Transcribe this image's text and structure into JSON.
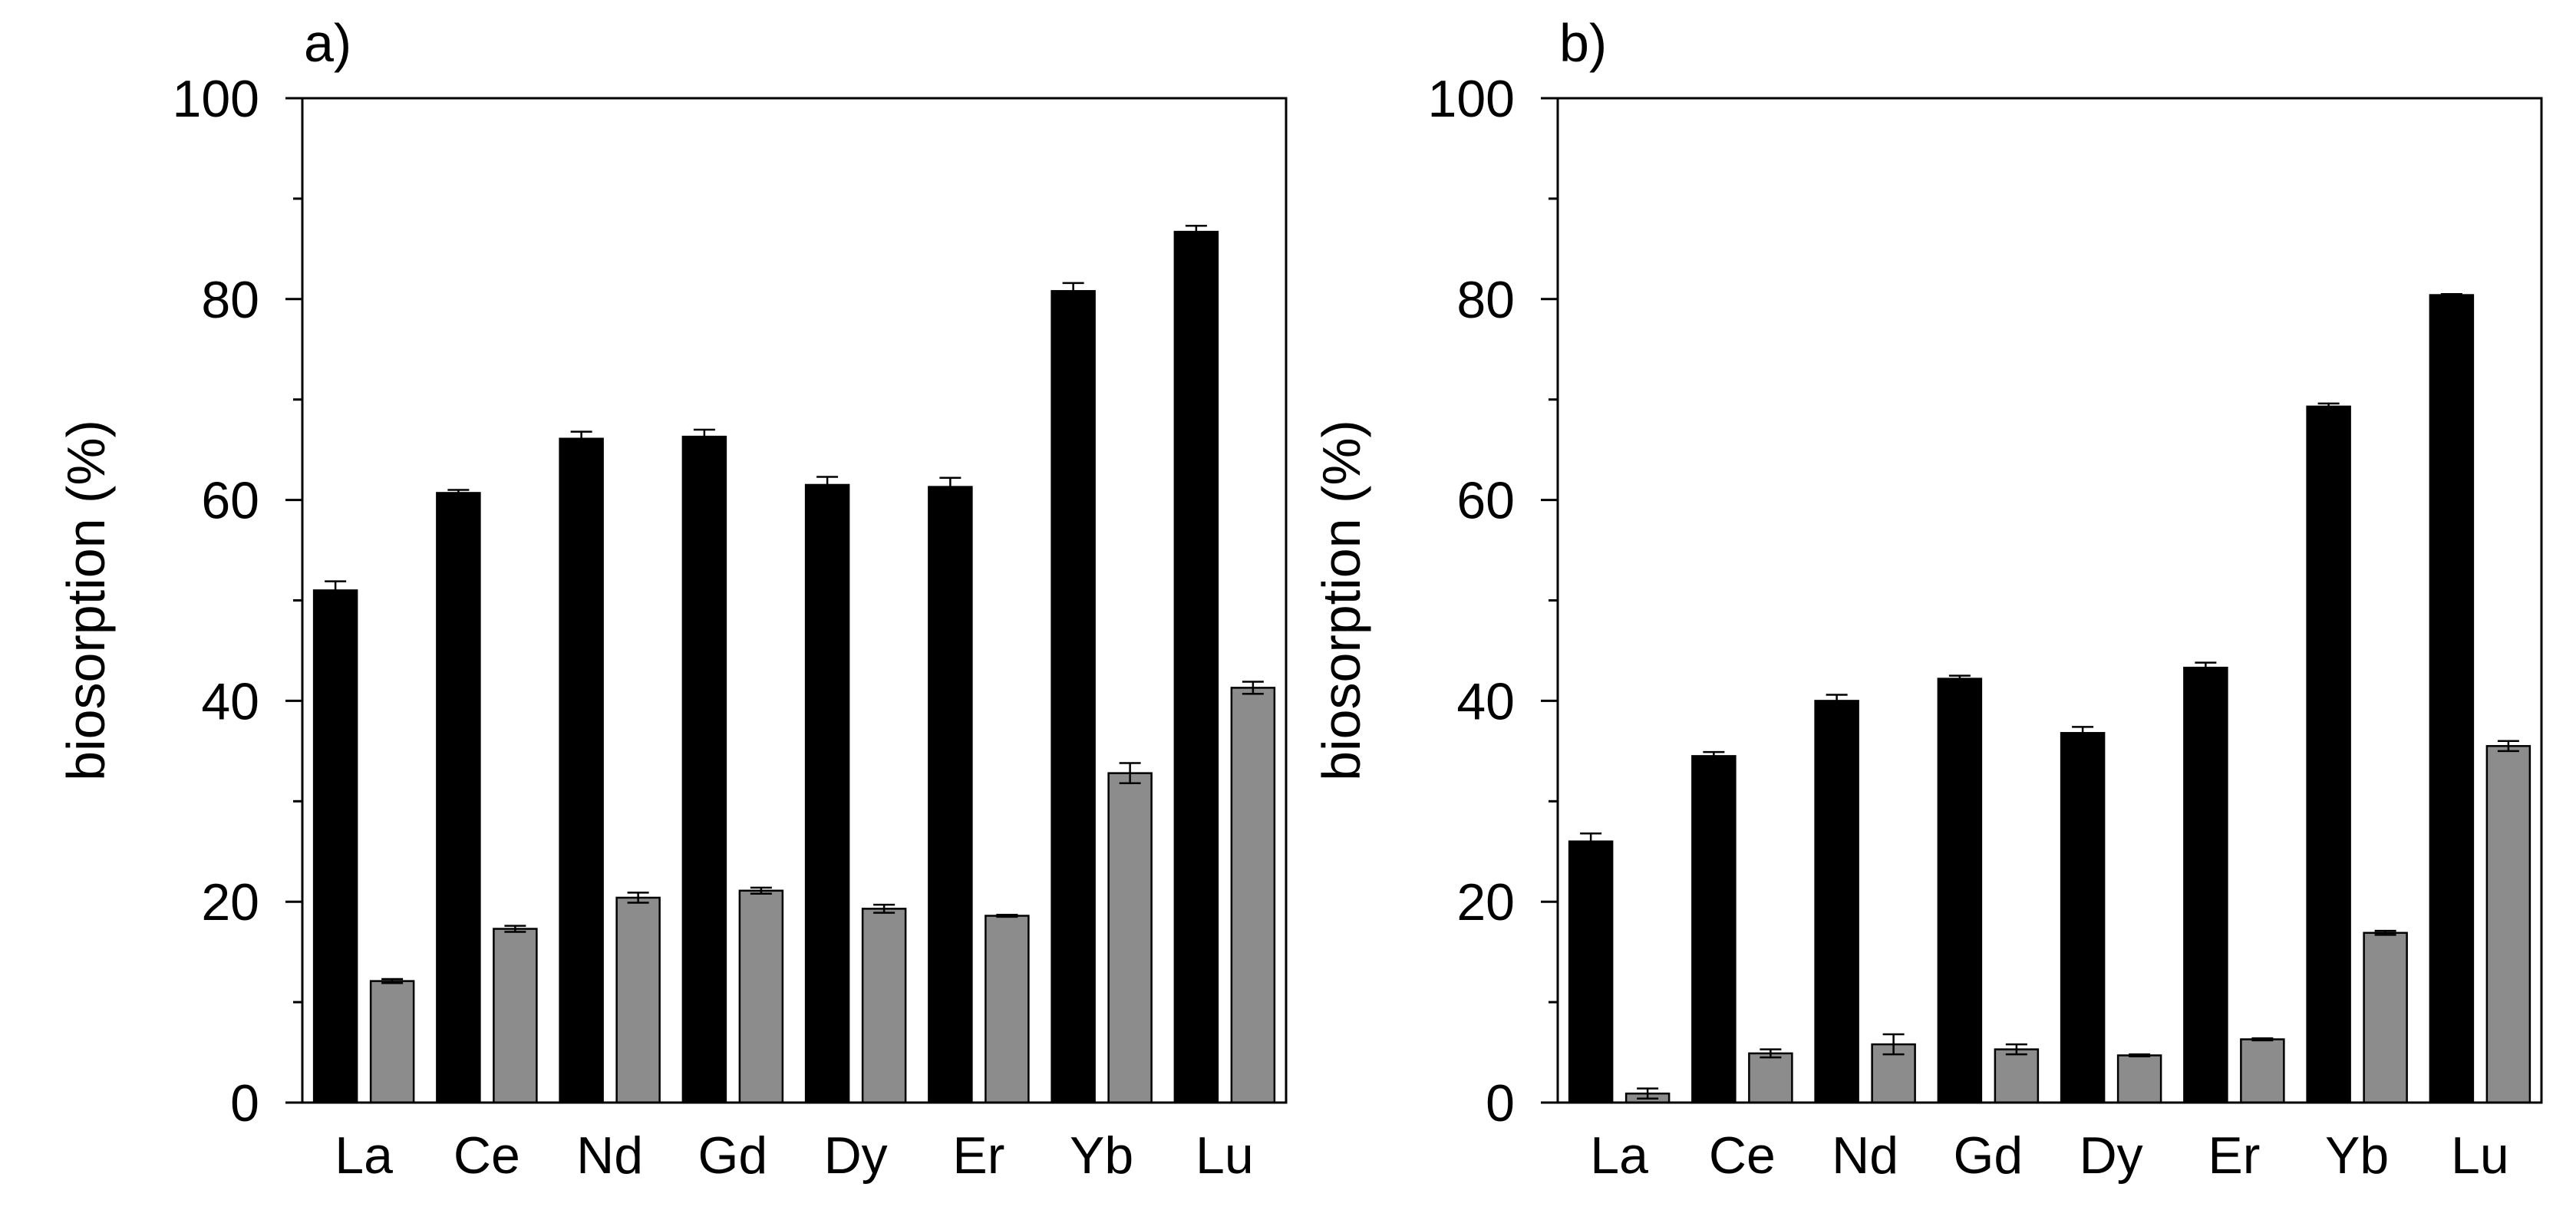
{
  "chart_data": [
    {
      "panel": "a)",
      "type": "bar",
      "categories": [
        "La",
        "Ce",
        "Nd",
        "Gd",
        "Dy",
        "Er",
        "Yb",
        "Lu"
      ],
      "ylabel": "biosorption (%)",
      "xlabel": "",
      "ylim": [
        0,
        100
      ],
      "yticks": [
        "0",
        "20",
        "40",
        "60",
        "80",
        "100"
      ],
      "series": [
        {
          "name": "black",
          "color": "#000000",
          "values": [
            51.0,
            60.7,
            66.1,
            66.3,
            61.5,
            61.3,
            80.8,
            86.7
          ],
          "errors": [
            0.9,
            0.3,
            0.7,
            0.7,
            0.8,
            0.9,
            0.8,
            0.6
          ]
        },
        {
          "name": "gray",
          "color": "#8c8c8c",
          "values": [
            12.1,
            17.3,
            20.4,
            21.1,
            19.3,
            18.6,
            32.8,
            41.3
          ],
          "errors": [
            0.2,
            0.3,
            0.5,
            0.3,
            0.4,
            0.1,
            1.0,
            0.6
          ]
        }
      ]
    },
    {
      "panel": "b)",
      "type": "bar",
      "categories": [
        "La",
        "Ce",
        "Nd",
        "Gd",
        "Dy",
        "Er",
        "Yb",
        "Lu"
      ],
      "ylabel": "biosorption (%)",
      "xlabel": "",
      "ylim": [
        0,
        100
      ],
      "yticks": [
        "0",
        "20",
        "40",
        "60",
        "80",
        "100"
      ],
      "series": [
        {
          "name": "black",
          "color": "#000000",
          "values": [
            26.0,
            34.5,
            40.0,
            42.2,
            36.8,
            43.3,
            69.3,
            80.4
          ],
          "errors": [
            0.8,
            0.4,
            0.6,
            0.3,
            0.6,
            0.5,
            0.3,
            0.1
          ]
        },
        {
          "name": "gray",
          "color": "#8c8c8c",
          "values": [
            0.9,
            4.9,
            5.8,
            5.3,
            4.7,
            6.3,
            16.9,
            35.5
          ],
          "errors": [
            0.5,
            0.4,
            1.0,
            0.5,
            0.1,
            0.1,
            0.2,
            0.5
          ]
        }
      ]
    }
  ]
}
